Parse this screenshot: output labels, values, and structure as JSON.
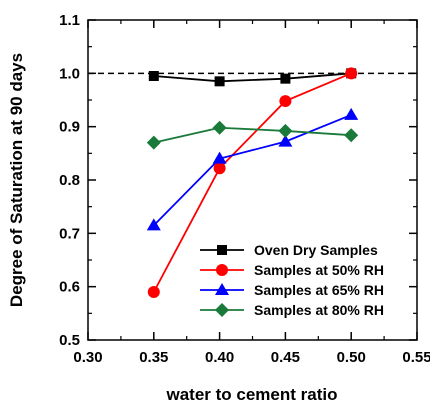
{
  "chart_data": {
    "type": "line",
    "title": "",
    "xlabel": "water to cement ratio",
    "ylabel": "Degree of Saturation at 90 days",
    "xlim": [
      0.3,
      0.55
    ],
    "ylim": [
      0.5,
      1.1
    ],
    "xticks": [
      "0.30",
      "0.35",
      "0.40",
      "0.45",
      "0.50",
      "0.55"
    ],
    "yticks": [
      "0.5",
      "0.6",
      "0.7",
      "0.8",
      "0.9",
      "1.0",
      "1.1"
    ],
    "grid": false,
    "legend_position": "bottom-right",
    "reference_line": {
      "y": 1.0,
      "style": "dashed"
    },
    "x": [
      0.35,
      0.4,
      0.45,
      0.5
    ],
    "series": [
      {
        "name": "Oven Dry Samples",
        "values": [
          0.995,
          0.985,
          0.99,
          1.0
        ],
        "color": "#000000",
        "marker": "square"
      },
      {
        "name": "Samples at 50% RH",
        "values": [
          0.59,
          0.822,
          0.948,
          1.0
        ],
        "color": "#ff0000",
        "marker": "circle"
      },
      {
        "name": "Samples at 65% RH",
        "values": [
          0.715,
          0.84,
          0.872,
          0.922
        ],
        "color": "#0000ff",
        "marker": "triangle"
      },
      {
        "name": "Samples at 80% RH",
        "values": [
          0.87,
          0.898,
          0.892,
          0.884
        ],
        "color": "#1a7a3a",
        "marker": "diamond"
      }
    ]
  }
}
